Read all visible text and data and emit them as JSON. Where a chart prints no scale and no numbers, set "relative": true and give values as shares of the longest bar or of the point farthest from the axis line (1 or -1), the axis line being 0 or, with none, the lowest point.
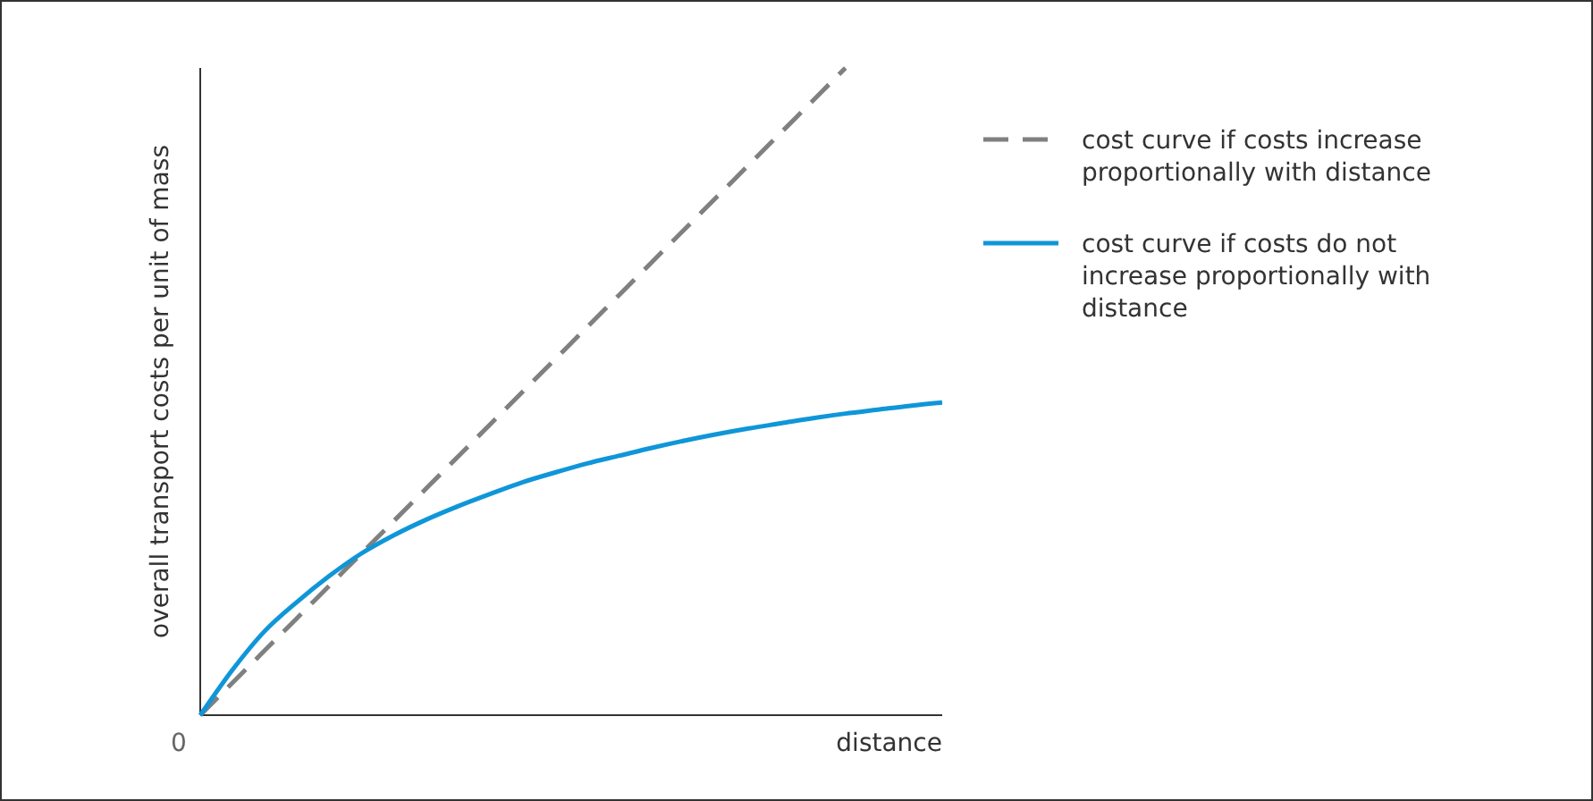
{
  "chart_data": {
    "type": "line",
    "relative": true,
    "xlabel": "distance",
    "ylabel": "overall transport costs per unit of mass",
    "annotations": [
      "0"
    ],
    "legend": "right",
    "marker": "none",
    "categories": [
      null,
      null,
      null,
      null,
      null,
      null,
      null,
      null,
      null,
      null,
      null,
      null,
      null,
      null,
      null,
      null,
      null,
      null,
      null,
      null,
      null,
      null,
      null,
      null
    ],
    "series": [
      {
        "name": "cost curve if costs increase proportionally with distance",
        "color": "#808080",
        "line_style": "dashed",
        "values": [
          0,
          0.05,
          0.1,
          0.15,
          0.2,
          0.25,
          0.3,
          0.35,
          0.4,
          0.45,
          0.5,
          0.55,
          0.6,
          0.65,
          0.7,
          0.75,
          0.8,
          0.85,
          0.9,
          0.95,
          1,
          null,
          null,
          null
        ]
      },
      {
        "name": "cost curve if costs do not increase proportionally with distance",
        "color": "#0f96d9",
        "line_style": "solid",
        "values": [
          0,
          0.07,
          0.13,
          0.175,
          0.215,
          0.25,
          0.278,
          0.302,
          0.323,
          0.342,
          0.36,
          0.375,
          0.389,
          0.401,
          0.413,
          0.424,
          0.434,
          0.443,
          0.451,
          0.459,
          0.466,
          0.472,
          0.478,
          0.483
        ]
      }
    ]
  }
}
